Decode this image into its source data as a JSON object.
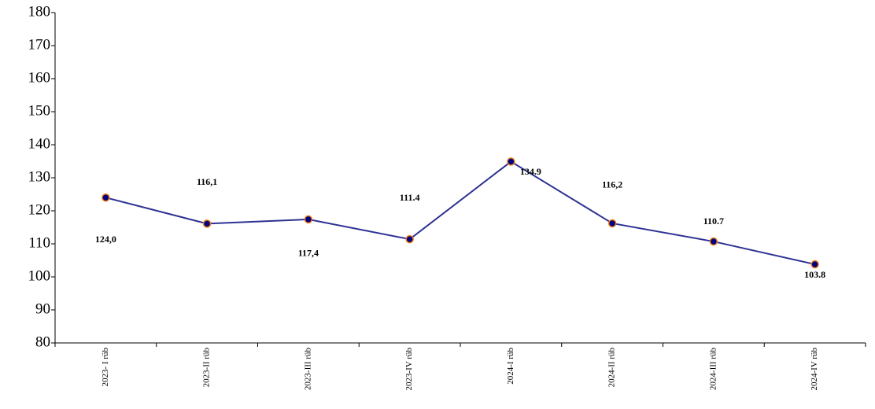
{
  "chart_data": {
    "type": "line",
    "categories": [
      "2023- I rüb",
      "2023-II rüb",
      "2023-III rüb",
      "2023-IV rüb",
      "2024-I rüb",
      "2024-II rüb",
      "2024-III rüb",
      "2024-IV rüb"
    ],
    "series": [
      {
        "name": "",
        "color": "#2e3192",
        "marker_edge": "#f07d1a",
        "values": [
          124.0,
          116.1,
          117.4,
          111.4,
          134.9,
          116.2,
          110.7,
          103.8
        ],
        "value_labels": [
          "124,0",
          "116,1",
          "117,4",
          "111.4",
          "134.9",
          "116,2",
          "110.7",
          "103.8"
        ]
      }
    ],
    "ylim": [
      80,
      180
    ],
    "yticks": [
      80,
      90,
      100,
      110,
      120,
      130,
      140,
      150,
      160,
      170,
      180
    ],
    "grid": false
  }
}
